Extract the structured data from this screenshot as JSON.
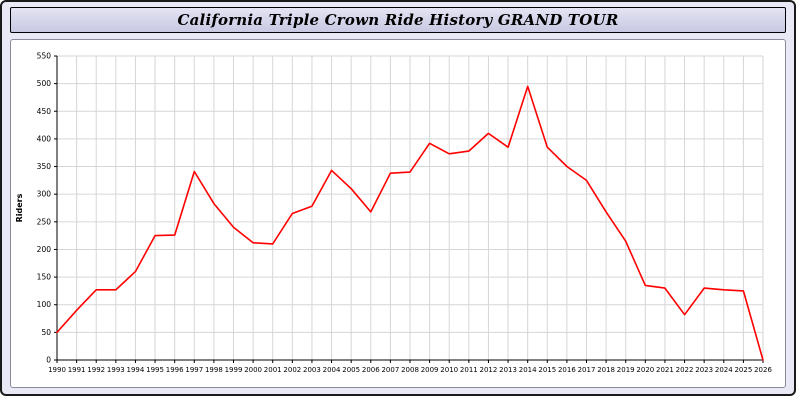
{
  "window": {
    "title": "California Triple Crown Ride History GRAND TOUR"
  },
  "chart_data": {
    "type": "line",
    "title": "California Triple Crown Ride History GRAND TOUR",
    "xlabel": "",
    "ylabel": "Riders",
    "ylim": [
      0,
      550
    ],
    "ytick_step": 50,
    "grid": true,
    "legend_position": "none",
    "x": [
      1990,
      1991,
      1992,
      1993,
      1994,
      1995,
      1996,
      1997,
      1998,
      1999,
      2000,
      2001,
      2002,
      2003,
      2004,
      2005,
      2006,
      2007,
      2008,
      2009,
      2010,
      2011,
      2012,
      2013,
      2014,
      2015,
      2016,
      2017,
      2018,
      2019,
      2020,
      2021,
      2022,
      2023,
      2024,
      2025,
      2026
    ],
    "series": [
      {
        "name": "Riders",
        "color": "#ff0000",
        "values": [
          50,
          90,
          127,
          127,
          160,
          225,
          226,
          341,
          283,
          240,
          212,
          210,
          265,
          278,
          343,
          310,
          268,
          338,
          340,
          392,
          373,
          378,
          410,
          385,
          495,
          385,
          350,
          325,
          268,
          215,
          135,
          130,
          82,
          130,
          127,
          125,
          0
        ]
      }
    ],
    "colors": {
      "line": "#ff0000",
      "grid": "#d6d6d6",
      "axis": "#000000",
      "plot_bg": "#ffffff",
      "page_bg": "#e9e9f6",
      "title_bg": "#cfcfe8"
    }
  }
}
